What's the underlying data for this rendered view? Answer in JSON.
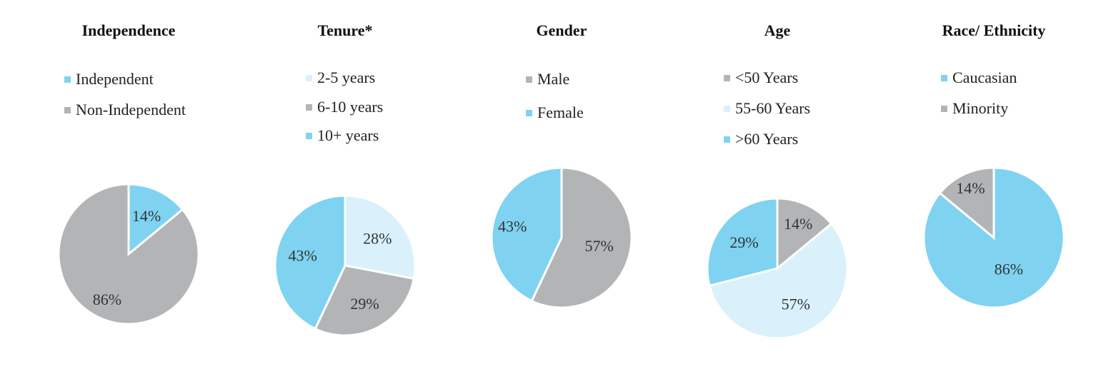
{
  "colors": {
    "blue": "#7fd3f1",
    "gray": "#b2b4b5",
    "lightblue": "#daf1fb"
  },
  "chart_data": [
    {
      "type": "pie",
      "title": "Independence",
      "slices": [
        {
          "label": "Independent",
          "value": 14,
          "display": "14%",
          "color": "#7fd3f1"
        },
        {
          "label": "Non-Independent",
          "value": 86,
          "display": "86%",
          "color": "#b2b4b5"
        }
      ],
      "legend": [
        "Independent",
        "Non-Independent"
      ]
    },
    {
      "type": "pie",
      "title": "Tenure*",
      "slices": [
        {
          "label": "2-5 years",
          "value": 28,
          "display": "28%",
          "color": "#daf1fb"
        },
        {
          "label": "6-10 years",
          "value": 29,
          "display": "29%",
          "color": "#b2b4b5"
        },
        {
          "label": "10+ years",
          "value": 43,
          "display": "43%",
          "color": "#7fd3f1"
        }
      ],
      "legend": [
        "2-5 years",
        "6-10 years",
        "10+ years"
      ]
    },
    {
      "type": "pie",
      "title": "Gender",
      "slices": [
        {
          "label": "Male",
          "value": 57,
          "display": "57%",
          "color": "#b2b4b5"
        },
        {
          "label": "Female",
          "value": 43,
          "display": "43%",
          "color": "#7fd3f1"
        }
      ],
      "legend": [
        "Male",
        "Female"
      ]
    },
    {
      "type": "pie",
      "title": "Age",
      "slices": [
        {
          "label": "<50 Years",
          "value": 14,
          "display": "14%",
          "color": "#b2b4b5"
        },
        {
          "label": "55-60 Years",
          "value": 57,
          "display": "57%",
          "color": "#daf1fb"
        },
        {
          "label": ">60 Years",
          "value": 29,
          "display": "29%",
          "color": "#7fd3f1"
        }
      ],
      "legend": [
        "<50 Years",
        "55-60 Years",
        ">60 Years"
      ]
    },
    {
      "type": "pie",
      "title": "Race/ Ethnicity",
      "slices": [
        {
          "label": "Caucasian",
          "value": 86,
          "display": "86%",
          "color": "#7fd3f1"
        },
        {
          "label": "Minority",
          "value": 14,
          "display": "14%",
          "color": "#b2b4b5"
        }
      ],
      "legend": [
        "Caucasian",
        "Minority"
      ]
    }
  ]
}
